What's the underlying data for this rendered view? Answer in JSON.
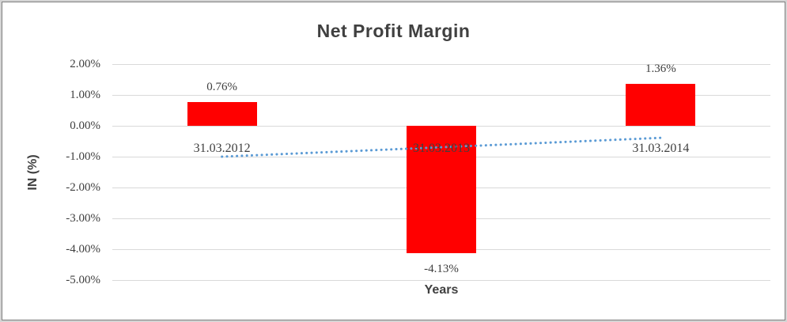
{
  "chart_data": {
    "type": "bar",
    "title": "Net Profit Margin",
    "xlabel": "Years",
    "ylabel": "IN (%)",
    "categories": [
      "31.03.2012",
      "31.03.2013",
      "31.03.2014"
    ],
    "series": [
      {
        "name": "Net Profit Margin",
        "values": [
          0.76,
          -4.13,
          1.36
        ]
      }
    ],
    "data_labels": [
      "0.76%",
      "-4.13%",
      "1.36%"
    ],
    "y_ticks": [
      "2.00%",
      "1.00%",
      "0.00%",
      "-1.00%",
      "-2.00%",
      "-3.00%",
      "-4.00%",
      "-5.00%"
    ],
    "y_tick_values": [
      2,
      1,
      0,
      -1,
      -2,
      -3,
      -4,
      -5
    ],
    "ylim": [
      -5,
      2
    ],
    "grid": true,
    "legend": "none",
    "bar_color": "#ff0000",
    "gridline_color": "#d9d9d9",
    "trendline": {
      "type": "linear-dotted",
      "color": "#5b9bd5",
      "start_value": -1.0,
      "end_value": -0.39
    }
  }
}
